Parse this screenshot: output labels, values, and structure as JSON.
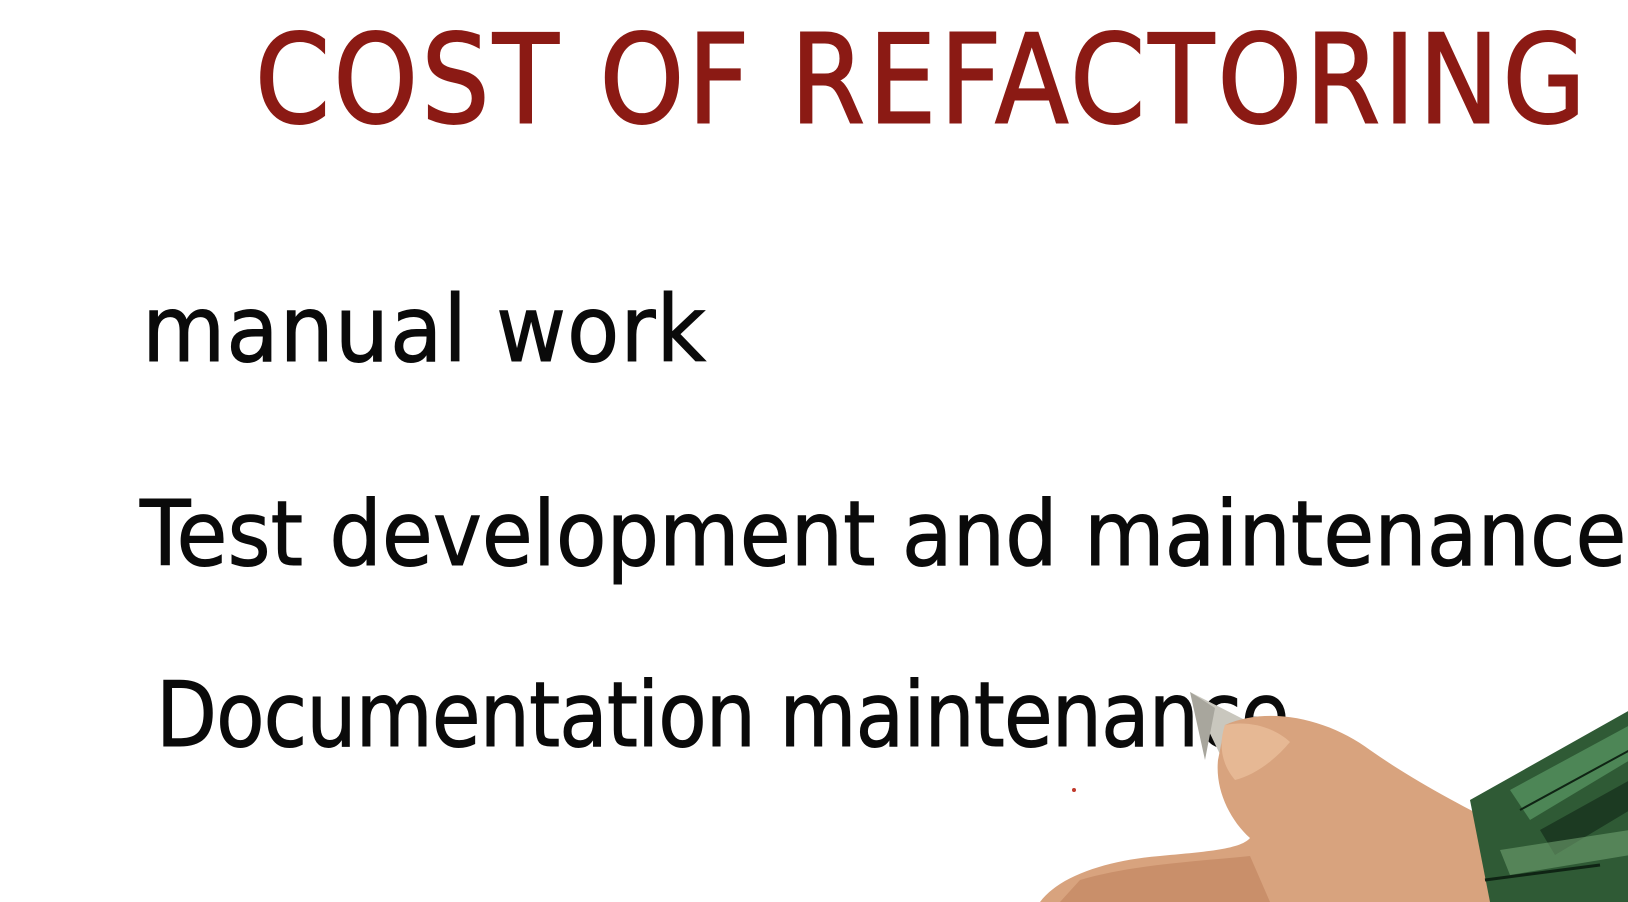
{
  "slide": {
    "title": "COST OF REFACTORING",
    "items": [
      {
        "text": "manual work"
      },
      {
        "text": "Test development and maintenance"
      },
      {
        "text": "Documentation maintenance"
      }
    ]
  },
  "colors": {
    "title": "#8b1a14",
    "text": "#0a0a0a",
    "background": "#ffffff",
    "skin": "#d9a07a",
    "marker_tip": "#b9b7ae",
    "marker_body": "#2f5a35"
  },
  "icons": {
    "hand": "hand-holding-marker-icon"
  }
}
